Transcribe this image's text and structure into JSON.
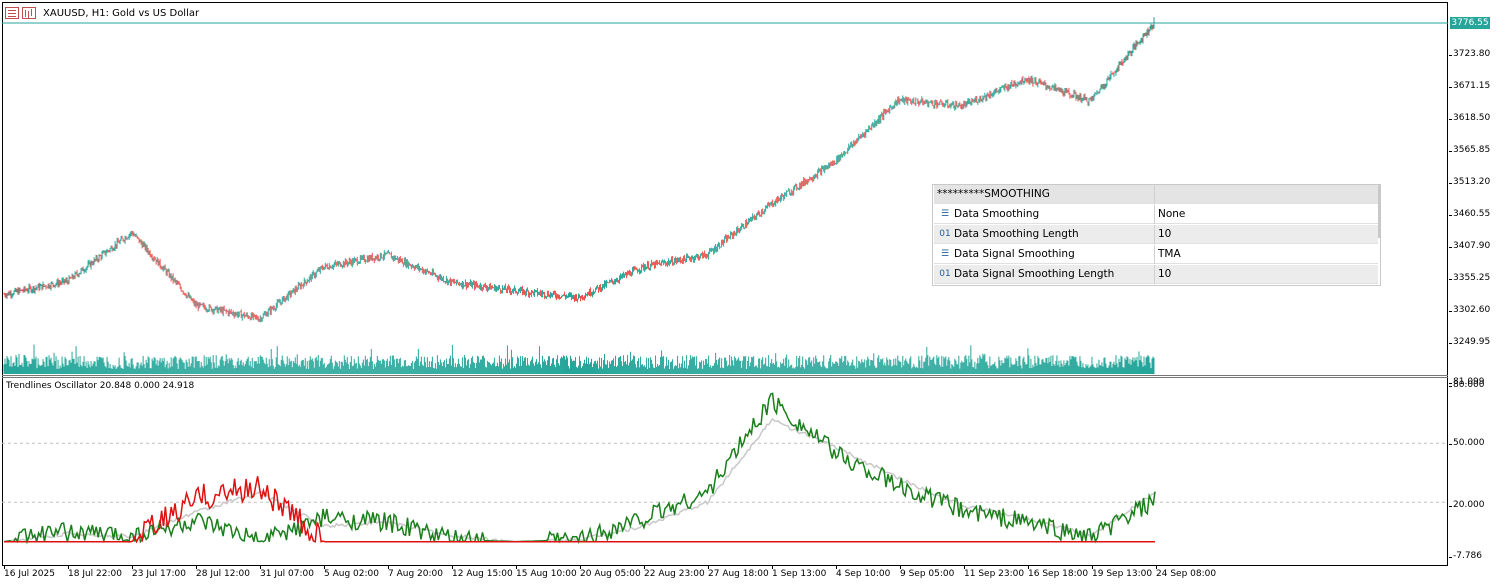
{
  "window": {
    "title": "XAUUSD, H1:  Gold vs US Dollar",
    "icons": [
      "table-icon",
      "bar-chart-icon"
    ]
  },
  "price_scale": {
    "current_price": "3776.55",
    "ticks": [
      "3723.80",
      "3671.15",
      "3618.50",
      "3565.85",
      "3513.20",
      "3460.55",
      "3407.90",
      "3355.25",
      "3302.60",
      "3249.95"
    ]
  },
  "oscillator": {
    "title": "Trendlines Oscillator 20.848 0.000 24.918",
    "scale_ticks": [
      "81.099",
      "80.000",
      "50.000",
      "20.000",
      "-7.786"
    ]
  },
  "time_axis": {
    "labels": [
      "16 Jul 2025",
      "18 Jul 22:00",
      "23 Jul 17:00",
      "28 Jul 12:00",
      "31 Jul 07:00",
      "5 Aug 02:00",
      "7 Aug 20:00",
      "12 Aug 15:00",
      "15 Aug 10:00",
      "20 Aug 05:00",
      "22 Aug 23:00",
      "27 Aug 18:00",
      "1 Sep 13:00",
      "4 Sep 10:00",
      "9 Sep 05:00",
      "11 Sep 23:00",
      "16 Sep 18:00",
      "19 Sep 13:00",
      "24 Sep 08:00"
    ]
  },
  "parameters": {
    "header": "*********SMOOTHING",
    "rows": [
      {
        "icon": "list-icon",
        "name": "Data Smoothing",
        "value": "None"
      },
      {
        "icon": "integer-icon",
        "name": "Data Smoothing Length",
        "value": "10"
      },
      {
        "icon": "list-icon",
        "name": "Data Signal Smoothing",
        "value": "TMA"
      },
      {
        "icon": "integer-icon",
        "name": "Data Signal Smoothing Length",
        "value": "10"
      }
    ],
    "icon_glyphs": {
      "list-icon": "☰",
      "integer-icon": "01"
    }
  },
  "colors": {
    "bull": "#26a69a",
    "bear": "#ef5350",
    "volume": "#26a69a",
    "osc_green": "#1a7f1a",
    "osc_red": "#e01010",
    "osc_signal": "#c8c8c8",
    "price_line": "#26a69a"
  },
  "chart_data": [
    {
      "type": "candlestick",
      "title": "XAUUSD, H1:  Gold vs US Dollar",
      "x_range": [
        "16 Jul 2025",
        "24 Sep 08:00"
      ],
      "ylim": [
        3249.95,
        3776.55
      ],
      "last_price": 3776.55,
      "approx_close_path": [
        {
          "x": "16 Jul 2025",
          "y": 3330
        },
        {
          "x": "18 Jul 22:00",
          "y": 3352
        },
        {
          "x": "23 Jul 17:00",
          "y": 3432
        },
        {
          "x": "28 Jul 12:00",
          "y": 3312
        },
        {
          "x": "31 Jul 07:00",
          "y": 3290
        },
        {
          "x": "5 Aug 02:00",
          "y": 3375
        },
        {
          "x": "7 Aug 20:00",
          "y": 3395
        },
        {
          "x": "12 Aug 15:00",
          "y": 3350
        },
        {
          "x": "15 Aug 10:00",
          "y": 3336
        },
        {
          "x": "20 Aug 05:00",
          "y": 3325
        },
        {
          "x": "22 Aug 23:00",
          "y": 3375
        },
        {
          "x": "27 Aug 18:00",
          "y": 3395
        },
        {
          "x": "1 Sep 13:00",
          "y": 3478
        },
        {
          "x": "4 Sep 10:00",
          "y": 3548
        },
        {
          "x": "9 Sep 05:00",
          "y": 3650
        },
        {
          "x": "11 Sep 23:00",
          "y": 3640
        },
        {
          "x": "16 Sep 18:00",
          "y": 3685
        },
        {
          "x": "19 Sep 13:00",
          "y": 3648
        },
        {
          "x": "24 Sep 08:00",
          "y": 3776.55
        }
      ]
    },
    {
      "type": "line",
      "title": "Trendlines Oscillator 20.848 0.000 24.918",
      "ylim": [
        -7.786,
        81.099
      ],
      "categories": [
        "16 Jul 2025",
        "18 Jul 22:00",
        "23 Jul 17:00",
        "28 Jul 12:00",
        "31 Jul 07:00",
        "5 Aug 02:00",
        "7 Aug 20:00",
        "12 Aug 15:00",
        "15 Aug 10:00",
        "20 Aug 05:00",
        "22 Aug 23:00",
        "27 Aug 18:00",
        "1 Sep 13:00",
        "4 Sep 10:00",
        "9 Sep 05:00",
        "11 Sep 23:00",
        "16 Sep 18:00",
        "19 Sep 13:00",
        "24 Sep 08:00"
      ],
      "series": [
        {
          "values": [
            0,
            5,
            3,
            10,
            0,
            12,
            10,
            1,
            0,
            1,
            12,
            25,
            72,
            45,
            28,
            16,
            10,
            2,
            20.848
          ]
        },
        {
          "values": [
            0,
            0,
            0,
            22,
            28,
            0,
            0,
            0,
            0,
            0,
            0,
            0,
            0,
            0,
            0,
            0,
            0,
            0,
            0
          ]
        },
        {
          "values": [
            0,
            4,
            3,
            15,
            25,
            8,
            10,
            3,
            0,
            1,
            8,
            20,
            62,
            48,
            32,
            18,
            12,
            3,
            24.918
          ]
        }
      ]
    }
  ]
}
